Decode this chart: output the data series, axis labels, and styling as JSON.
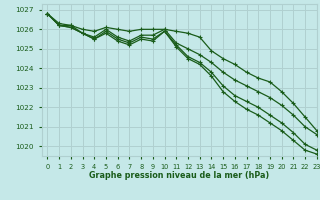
{
  "background_color": "#c5e8e8",
  "grid_color": "#b0d0d0",
  "line_color": "#1a5c1a",
  "xlabel": "Graphe pression niveau de la mer (hPa)",
  "ylim": [
    1019.5,
    1027.3
  ],
  "xlim": [
    -0.5,
    23
  ],
  "yticks": [
    1020,
    1021,
    1022,
    1023,
    1024,
    1025,
    1026,
    1027
  ],
  "xticks": [
    0,
    1,
    2,
    3,
    4,
    5,
    6,
    7,
    8,
    9,
    10,
    11,
    12,
    13,
    14,
    15,
    16,
    17,
    18,
    19,
    20,
    21,
    22,
    23
  ],
  "series1": [
    1026.8,
    1026.2,
    1026.1,
    1025.8,
    1025.5,
    1025.8,
    1025.4,
    1025.2,
    1025.5,
    1025.4,
    1025.9,
    1025.1,
    1024.5,
    1024.2,
    1023.6,
    1022.8,
    1022.3,
    1021.9,
    1021.6,
    1021.2,
    1020.8,
    1020.3,
    1019.8,
    1019.6
  ],
  "series2": [
    1026.8,
    1026.2,
    1026.1,
    1025.8,
    1025.5,
    1025.9,
    1025.5,
    1025.3,
    1025.6,
    1025.5,
    1025.9,
    1025.2,
    1024.6,
    1024.3,
    1023.8,
    1023.1,
    1022.6,
    1022.3,
    1022.0,
    1021.6,
    1021.2,
    1020.7,
    1020.1,
    1019.8
  ],
  "series3": [
    1026.8,
    1026.3,
    1026.2,
    1025.8,
    1025.6,
    1026.0,
    1025.6,
    1025.4,
    1025.7,
    1025.7,
    1026.0,
    1025.3,
    1025.0,
    1024.7,
    1024.3,
    1023.8,
    1023.4,
    1023.1,
    1022.8,
    1022.5,
    1022.1,
    1021.6,
    1021.0,
    1020.6
  ],
  "series4": [
    1026.8,
    1026.2,
    1026.2,
    1026.0,
    1025.9,
    1026.1,
    1026.0,
    1025.9,
    1026.0,
    1026.0,
    1026.0,
    1025.9,
    1025.8,
    1025.6,
    1024.9,
    1024.5,
    1024.2,
    1023.8,
    1023.5,
    1023.3,
    1022.8,
    1022.2,
    1021.5,
    1020.8
  ]
}
